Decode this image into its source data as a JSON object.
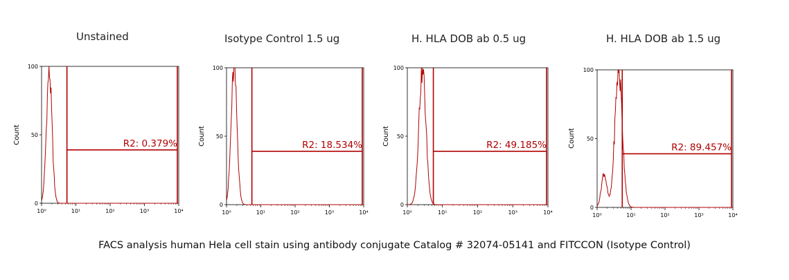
{
  "caption": "FACS analysis human Hela cell stain using antibody conjugate Catalog # 32074-05141 and FITCCON (Isotype Control)",
  "colors": {
    "histogram": "#b00000",
    "axis": "#000000",
    "label": "#b00000"
  },
  "chart_data": [
    {
      "type": "histogram",
      "title": "Unstained",
      "ylabel": "Count",
      "xscale": "log",
      "xlim": [
        1,
        10000
      ],
      "ylim": [
        0,
        100
      ],
      "yticks": [
        0,
        50,
        100
      ],
      "xticks": [
        "10⁰",
        "10¹",
        "10²",
        "10³",
        "10⁴"
      ],
      "gate": {
        "name": "R2",
        "start": 5.5,
        "end": 10000
      },
      "gate_label": "R2: 0.379%",
      "peaks": [
        {
          "center": 1.67,
          "width": 0.08,
          "height": 97
        }
      ]
    },
    {
      "type": "histogram",
      "title": "Isotype Control 1.5 ug",
      "ylabel": "Count",
      "xscale": "log",
      "xlim": [
        1,
        10000
      ],
      "ylim": [
        0,
        100
      ],
      "yticks": [
        0,
        50,
        100
      ],
      "xticks": [
        "10⁰",
        "10¹",
        "10²",
        "10³",
        "10⁴"
      ],
      "gate": {
        "name": "R2",
        "start": 5.5,
        "end": 10000
      },
      "gate_label": "R2: 18.534%",
      "peaks": [
        {
          "center": 1.66,
          "width": 0.085,
          "height": 100
        }
      ]
    },
    {
      "type": "histogram",
      "title": "H. HLA DOB ab 0.5 ug",
      "ylabel": "Count",
      "xscale": "log",
      "xlim": [
        1,
        10000
      ],
      "ylim": [
        0,
        100
      ],
      "yticks": [
        0,
        50,
        100
      ],
      "xticks": [
        "10⁰",
        "10¹",
        "10²",
        "10³",
        "10⁴"
      ],
      "gate": {
        "name": "R2",
        "start": 5.5,
        "end": 10000
      },
      "gate_label": "R2: 49.185%",
      "peaks": [
        {
          "center": 2.68,
          "width": 0.1,
          "height": 100
        }
      ]
    },
    {
      "type": "histogram",
      "title": "H. HLA DOB ab 1.5 ug",
      "ylabel": "Count",
      "xscale": "log",
      "xlim": [
        1,
        10000
      ],
      "ylim": [
        0,
        100
      ],
      "yticks": [
        0,
        50,
        100
      ],
      "xticks": [
        "10⁰",
        "10¹",
        "10²",
        "10³",
        "10⁴"
      ],
      "gate": {
        "name": "R2",
        "start": 5.5,
        "end": 10000
      },
      "gate_label": "R2: 89.457%",
      "peaks": [
        {
          "center": 4.3,
          "width": 0.11,
          "height": 100
        },
        {
          "center": 1.6,
          "width": 0.08,
          "height": 25
        }
      ]
    }
  ]
}
